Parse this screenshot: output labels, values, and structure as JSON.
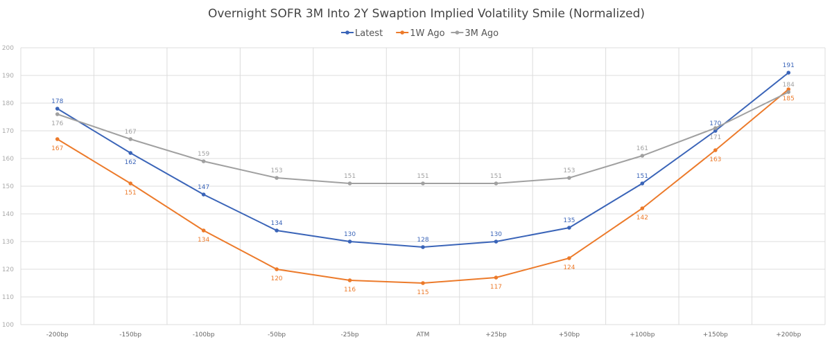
{
  "chart_data": {
    "type": "line",
    "title": "Overnight SOFR 3M Into 2Y Swaption Implied Volatility Smile (Normalized)",
    "xlabel": "",
    "ylabel": "",
    "categories": [
      "-200bp",
      "-150bp",
      "-100bp",
      "-50bp",
      "-25bp",
      "ATM",
      "+25bp",
      "+50bp",
      "+100bp",
      "+150bp",
      "+200bp"
    ],
    "ylim": [
      100,
      200
    ],
    "yticks": [
      100,
      110,
      120,
      130,
      140,
      150,
      160,
      170,
      180,
      190,
      200
    ],
    "grid": true,
    "legend_position": "top",
    "series": [
      {
        "name": "Latest",
        "color": "#3a64b8",
        "values": [
          178,
          162,
          147,
          134,
          130,
          128,
          130,
          135,
          151,
          170,
          191
        ],
        "label_pos": [
          "above",
          "below",
          "above",
          "above",
          "above",
          "above",
          "above",
          "above",
          "above",
          "above",
          "above"
        ]
      },
      {
        "name": "1W Ago",
        "color": "#ec7a2a",
        "values": [
          167,
          151,
          134,
          120,
          116,
          115,
          117,
          124,
          142,
          163,
          185
        ],
        "label_pos": [
          "below",
          "below",
          "below",
          "below",
          "below",
          "below",
          "below",
          "below",
          "below",
          "below",
          "below"
        ]
      },
      {
        "name": "3M Ago",
        "color": "#a0a0a0",
        "values": [
          176,
          167,
          159,
          153,
          151,
          151,
          151,
          153,
          161,
          171,
          184
        ],
        "label_pos": [
          "below",
          "above",
          "above",
          "above",
          "above",
          "above",
          "above",
          "above",
          "above",
          "below",
          "above"
        ]
      }
    ]
  }
}
